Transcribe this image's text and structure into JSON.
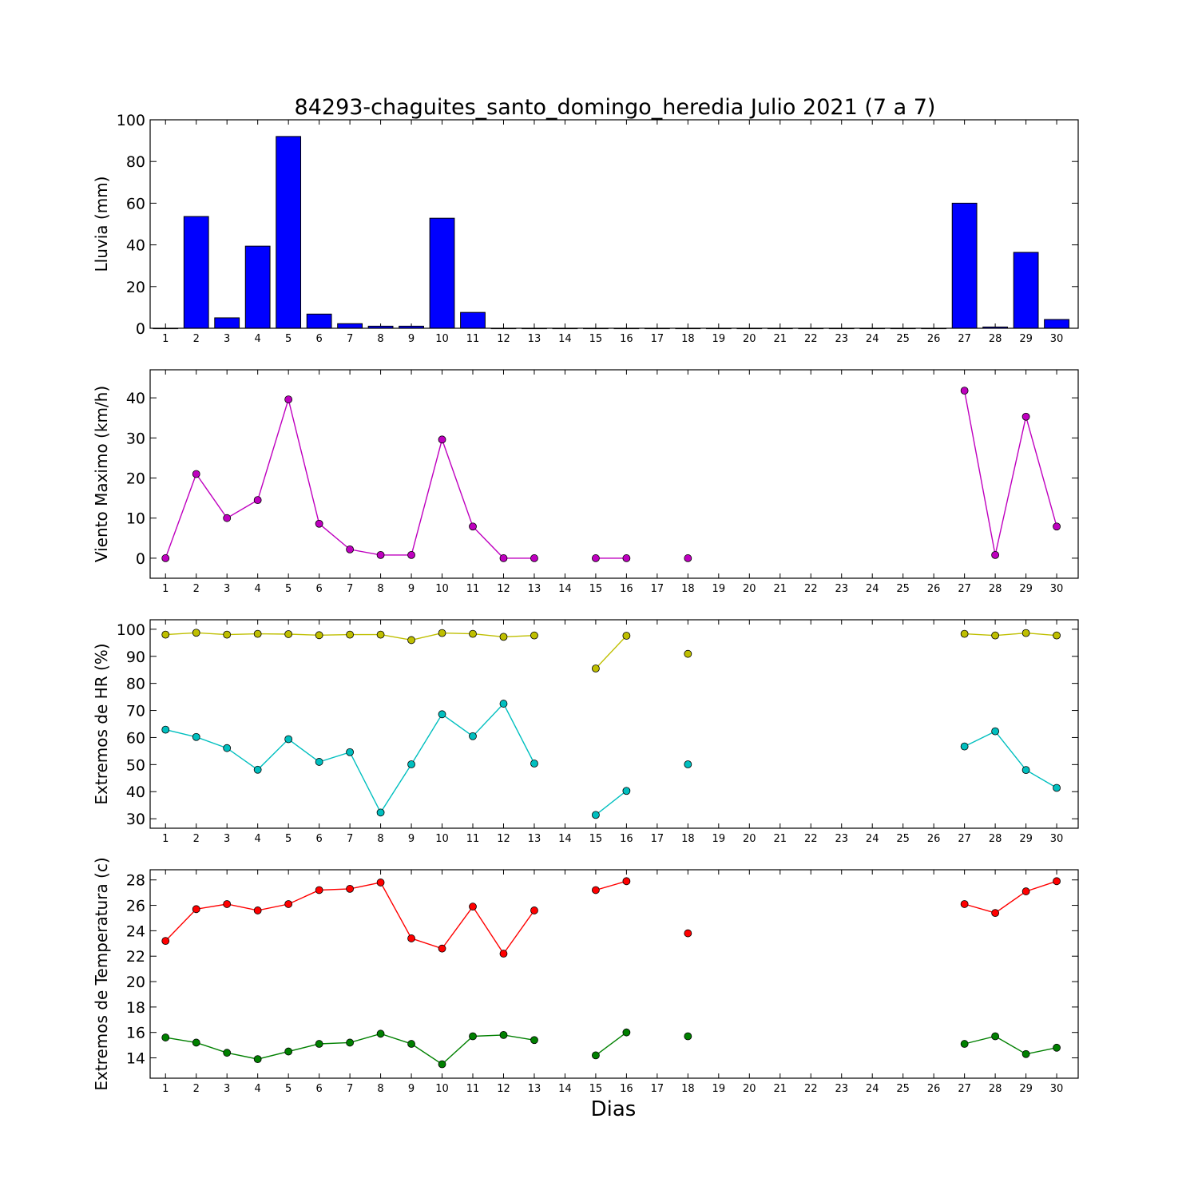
{
  "title": "84293-chaguites_santo_domingo_heredia Julio 2021  (7 a 7)",
  "xlabel": "Dias",
  "days": [
    1,
    2,
    3,
    4,
    5,
    6,
    7,
    8,
    9,
    10,
    11,
    12,
    13,
    14,
    15,
    16,
    17,
    18,
    19,
    20,
    21,
    22,
    23,
    24,
    25,
    26,
    27,
    28,
    29,
    30
  ],
  "chart_data": [
    {
      "type": "bar",
      "ylabel": "Lluvia (mm)",
      "ylim": [
        0,
        100
      ],
      "yticks": [
        0,
        20,
        40,
        60,
        80,
        100
      ],
      "color": "#0000ff",
      "series": [
        {
          "values": [
            0,
            53.6,
            5,
            39.4,
            92,
            6.8,
            2.2,
            1,
            1,
            52.8,
            7.6,
            0,
            0,
            0,
            0,
            0,
            0,
            0,
            0,
            0,
            0,
            0,
            0,
            0,
            0,
            0,
            60,
            0.6,
            36.4,
            4.2
          ]
        }
      ]
    },
    {
      "type": "line",
      "ylabel": "Viento Maximo (km/h)",
      "ylim": [
        -5,
        47
      ],
      "yticks": [
        0,
        10,
        20,
        30,
        40
      ],
      "series": [
        {
          "color": "#bf00bf",
          "values": [
            0,
            21,
            10,
            14.5,
            39.6,
            8.6,
            2.2,
            0.8,
            0.8,
            29.6,
            7.9,
            0,
            0,
            null,
            0,
            0,
            null,
            0,
            null,
            null,
            null,
            null,
            null,
            null,
            null,
            null,
            41.8,
            0.8,
            35.3,
            7.9
          ]
        }
      ]
    },
    {
      "type": "line",
      "ylabel": "Extremos de HR (%)",
      "ylim": [
        26.5,
        103.5
      ],
      "yticks": [
        30,
        40,
        50,
        60,
        70,
        80,
        90,
        100
      ],
      "series": [
        {
          "color": "#bfbf00",
          "values": [
            98,
            98.7,
            98,
            98.3,
            98.2,
            97.8,
            98,
            98,
            96,
            98.6,
            98.3,
            97.2,
            97.7,
            null,
            85.5,
            97.6,
            null,
            90.9,
            null,
            null,
            null,
            null,
            null,
            null,
            null,
            null,
            98.3,
            97.7,
            98.6,
            97.7
          ]
        },
        {
          "color": "#00bfbf",
          "values": [
            62.9,
            60.2,
            56.1,
            48.1,
            59.4,
            51,
            54.6,
            32.3,
            50.1,
            68.6,
            60.5,
            72.5,
            50.4,
            null,
            31.4,
            40.3,
            null,
            50.1,
            null,
            null,
            null,
            null,
            null,
            null,
            null,
            null,
            56.7,
            62.3,
            48,
            41.4
          ]
        }
      ]
    },
    {
      "type": "line",
      "ylabel": "Extremos de Temperatura (c)",
      "ylim": [
        12.4,
        28.8
      ],
      "yticks": [
        14,
        16,
        18,
        20,
        22,
        24,
        26,
        28
      ],
      "series": [
        {
          "color": "#ff0000",
          "values": [
            23.2,
            25.7,
            26.1,
            25.6,
            26.1,
            27.2,
            27.3,
            27.8,
            23.4,
            22.6,
            25.9,
            22.2,
            25.6,
            null,
            27.2,
            27.9,
            null,
            23.8,
            null,
            null,
            null,
            null,
            null,
            null,
            null,
            null,
            26.1,
            25.4,
            27.1,
            27.9
          ]
        },
        {
          "color": "#008000",
          "values": [
            15.6,
            15.2,
            14.4,
            13.9,
            14.5,
            15.1,
            15.2,
            15.9,
            15.1,
            13.5,
            15.7,
            15.8,
            15.4,
            null,
            14.2,
            16,
            null,
            15.7,
            null,
            null,
            null,
            null,
            null,
            null,
            null,
            null,
            15.1,
            15.7,
            14.3,
            14.8
          ]
        }
      ]
    }
  ]
}
